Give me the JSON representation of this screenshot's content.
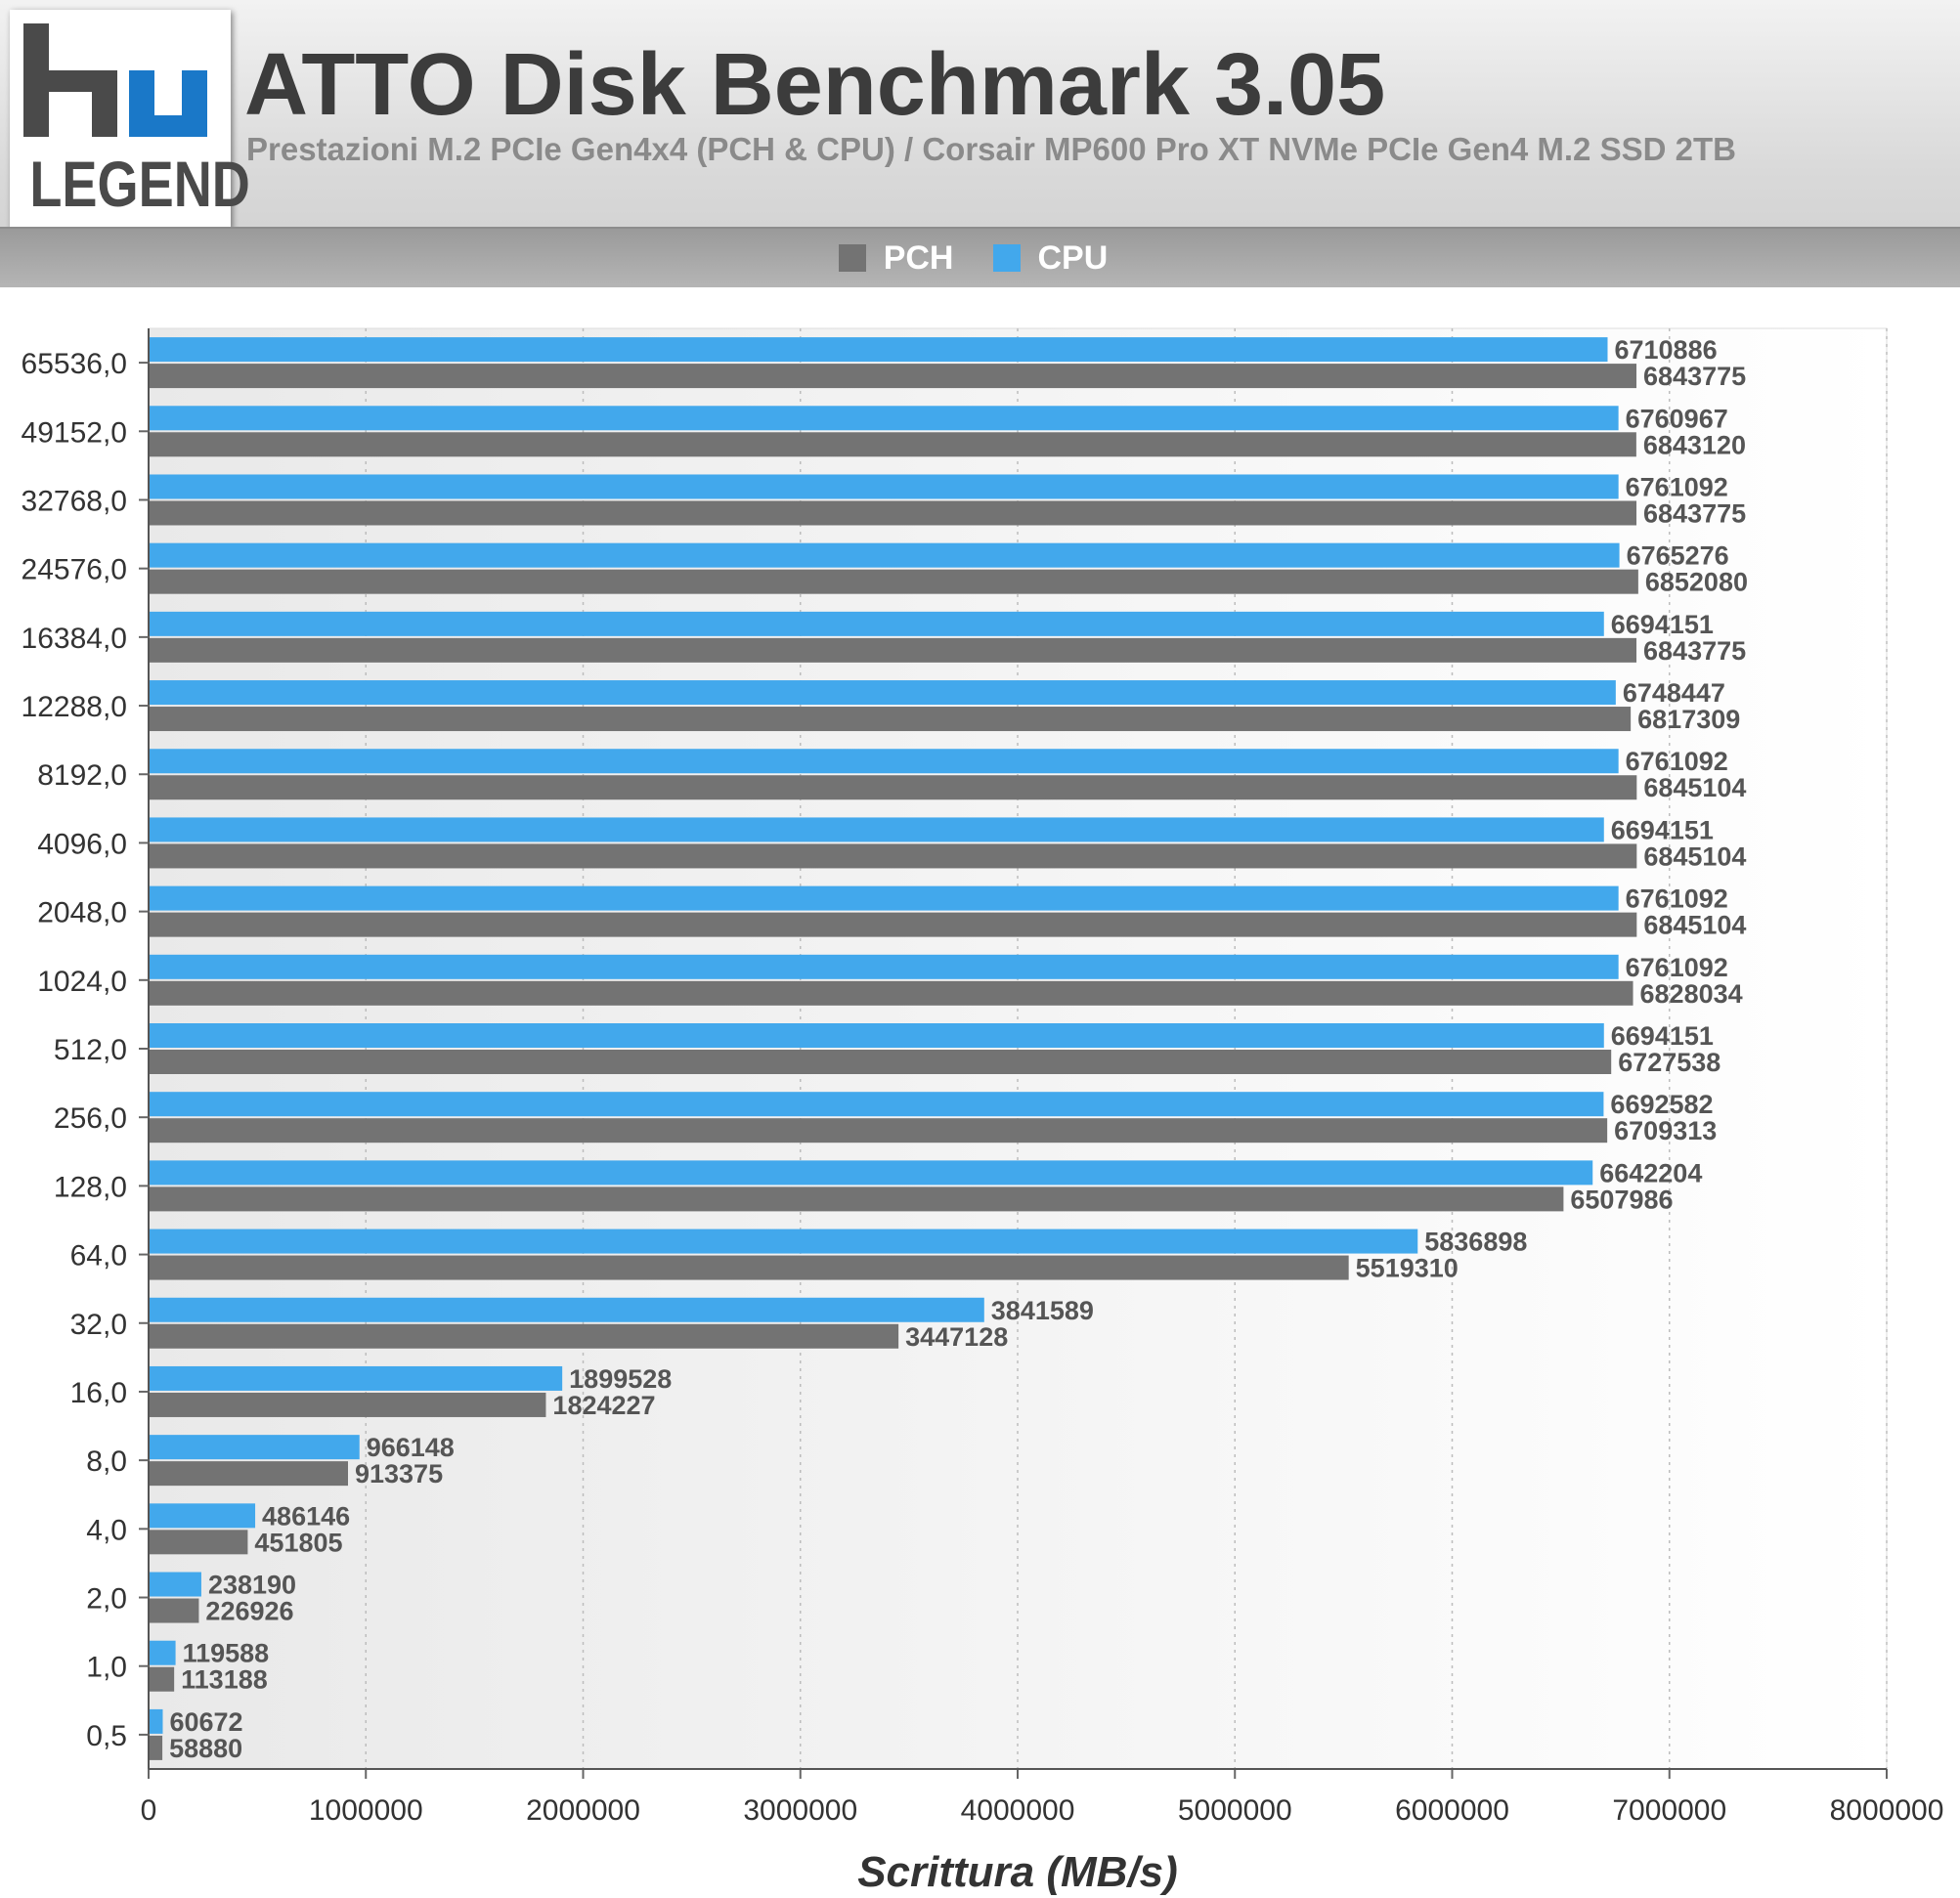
{
  "header": {
    "logo_text": "LEGEND",
    "title": "ATTO Disk Benchmark 3.05",
    "subtitle": "Prestazioni M.2 PCIe Gen4x4 (PCH & CPU) / Corsair MP600 Pro XT NVMe PCIe Gen4 M.2 SSD 2TB"
  },
  "colors": {
    "pch": "#737373",
    "cpu": "#42a8ec",
    "logo_blue": "#1a78c8"
  },
  "chart_data": {
    "type": "bar",
    "orientation": "horizontal",
    "title": "ATTO Disk Benchmark 3.05",
    "subtitle": "Prestazioni M.2 PCIe Gen4x4 (PCH & CPU) / Corsair MP600 Pro XT NVMe PCIe Gen4 M.2 SSD 2TB",
    "xlabel": "Scrittura (MB/s)",
    "ylabel": "",
    "xlim": [
      0,
      8000000
    ],
    "x_ticks": [
      "0",
      "1000000",
      "2000000",
      "3000000",
      "4000000",
      "5000000",
      "6000000",
      "7000000",
      "8000000"
    ],
    "grid": true,
    "legend_position": "top-center",
    "categories": [
      "65536,0",
      "49152,0",
      "32768,0",
      "24576,0",
      "16384,0",
      "12288,0",
      "8192,0",
      "4096,0",
      "2048,0",
      "1024,0",
      "512,0",
      "256,0",
      "128,0",
      "64,0",
      "32,0",
      "16,0",
      "8,0",
      "4,0",
      "2,0",
      "1,0",
      "0,5"
    ],
    "series": [
      {
        "name": "CPU",
        "values": [
          6710886,
          6760967,
          6761092,
          6765276,
          6694151,
          6748447,
          6761092,
          6694151,
          6761092,
          6761092,
          6694151,
          6692582,
          6642204,
          5836898,
          3841589,
          1899528,
          966148,
          486146,
          238190,
          119588,
          60672
        ]
      },
      {
        "name": "PCH",
        "values": [
          6843775,
          6843120,
          6843775,
          6852080,
          6843775,
          6817309,
          6845104,
          6845104,
          6845104,
          6828034,
          6727538,
          6709313,
          6507986,
          5519310,
          3447128,
          1824227,
          913375,
          451805,
          226926,
          113188,
          58880
        ]
      }
    ],
    "legend": [
      "PCH",
      "CPU"
    ]
  }
}
